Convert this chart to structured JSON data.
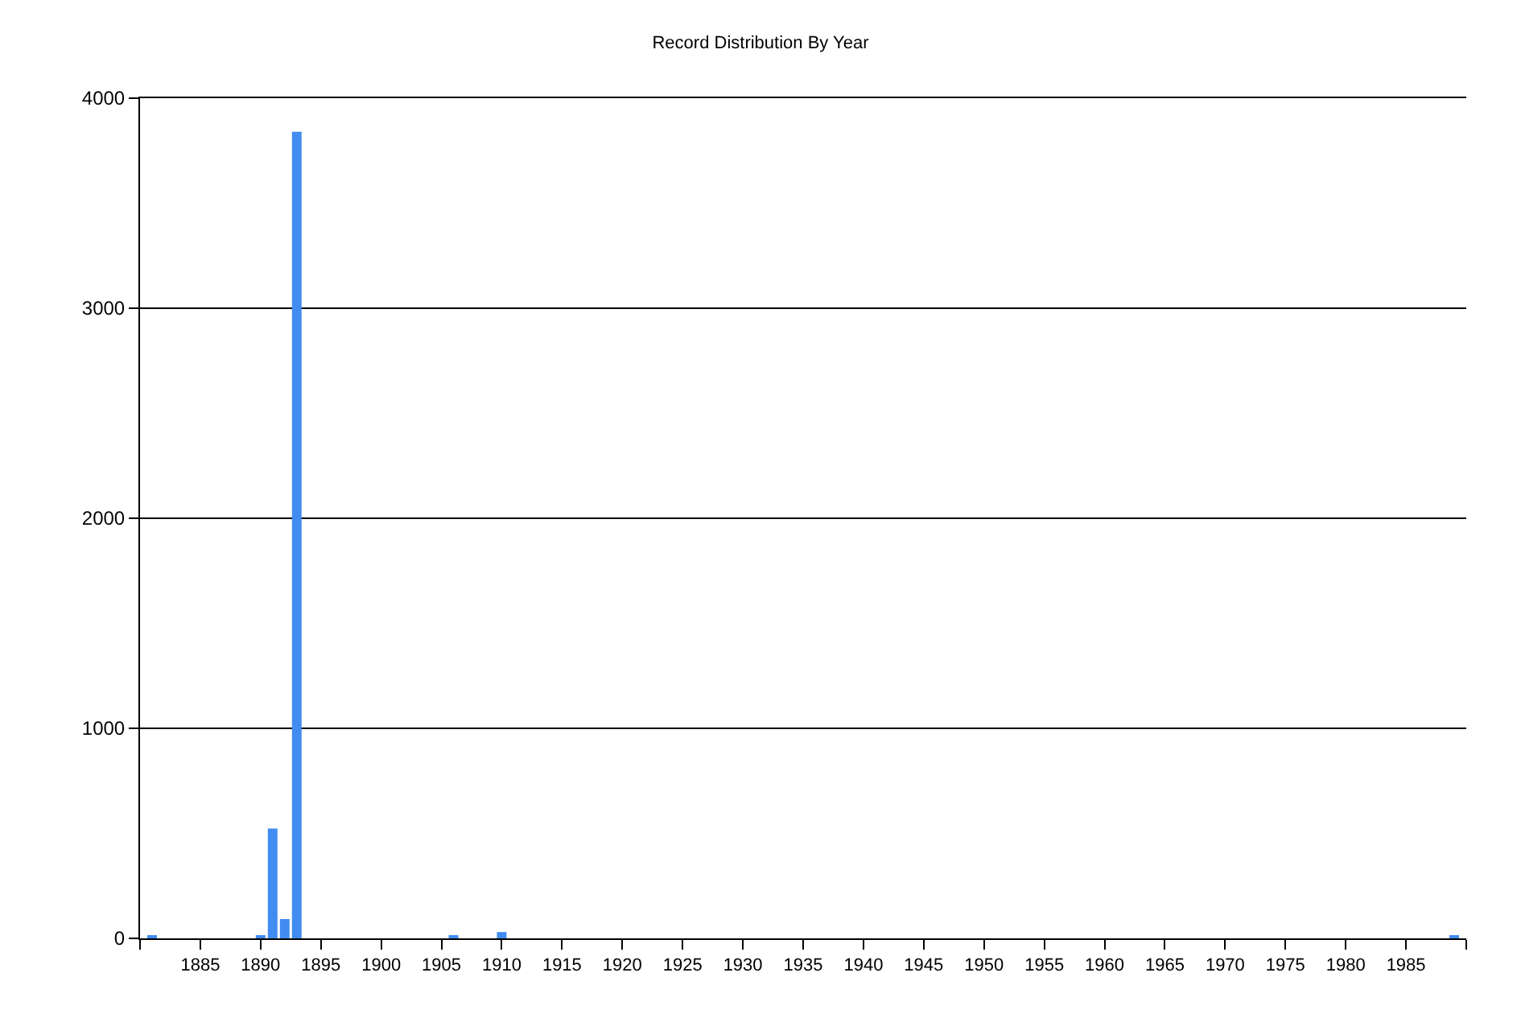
{
  "chart_data": {
    "type": "bar",
    "title": "Record Distribution By Year",
    "x": [
      1881,
      1890,
      1891,
      1892,
      1893,
      1906,
      1910,
      1989
    ],
    "values": [
      10,
      10,
      523,
      92,
      3840,
      10,
      30,
      10
    ],
    "color": "#418cf0",
    "xlim": [
      1880,
      1990
    ],
    "xticks": [
      {
        "value": 1880,
        "label": null
      },
      1885,
      1890,
      1895,
      1900,
      1905,
      1910,
      1915,
      1920,
      1925,
      1930,
      1935,
      1940,
      1945,
      1950,
      1955,
      1960,
      1965,
      1970,
      1975,
      1980,
      1985,
      {
        "value": 1990,
        "label": null
      }
    ],
    "ylim": [
      0,
      4000
    ],
    "yticks": [
      0,
      1000,
      2000,
      3000,
      4000
    ],
    "grid": "y"
  }
}
